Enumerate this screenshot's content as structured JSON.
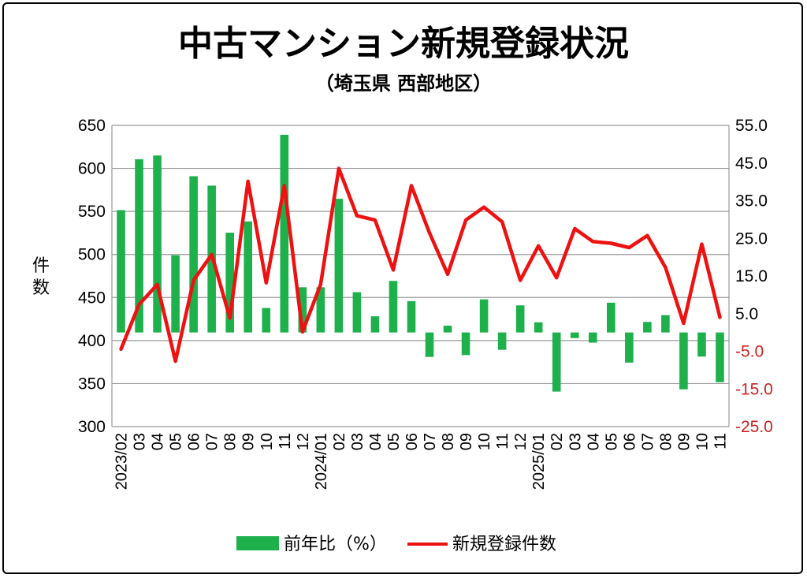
{
  "chart_data": {
    "type": "bar+line",
    "title": "中古マンション新規登録状況",
    "subtitle": "（埼玉県 西部地区）",
    "ylabel_left": "件数",
    "left_axis": {
      "min": 300,
      "max": 650,
      "ticks": [
        "300",
        "350",
        "400",
        "450",
        "500",
        "550",
        "600",
        "650"
      ]
    },
    "right_axis": {
      "min": -25,
      "max": 55,
      "ticks": [
        "-25.0",
        "-15.0",
        "-5.0",
        "5.0",
        "15.0",
        "25.0",
        "35.0",
        "45.0",
        "55.0"
      ],
      "negative_color": "#cc2222"
    },
    "categories": [
      "2023/02",
      "03",
      "04",
      "05",
      "06",
      "07",
      "08",
      "09",
      "10",
      "11",
      "12",
      "2024/01",
      "02",
      "03",
      "04",
      "05",
      "06",
      "07",
      "08",
      "09",
      "10",
      "11",
      "12",
      "2025/01",
      "02",
      "03",
      "04",
      "05",
      "06",
      "07",
      "08",
      "09",
      "10",
      "11"
    ],
    "series": [
      {
        "name": "前年比(%)",
        "type": "bar",
        "axis": "right",
        "color": "#1db04b",
        "values": [
          32.5,
          46.0,
          47.0,
          20.5,
          41.5,
          39.0,
          26.5,
          29.5,
          6.5,
          52.5,
          12.0,
          12.0,
          35.5,
          10.7,
          4.3,
          13.7,
          8.3,
          -6.5,
          1.8,
          -6.0,
          8.8,
          -4.6,
          7.2,
          2.7,
          -15.7,
          -1.5,
          -2.7,
          7.9,
          -8.0,
          2.8,
          4.6,
          -15.1,
          -6.4,
          -13.2
        ]
      },
      {
        "name": "新規登録件数",
        "type": "line",
        "axis": "left",
        "color": "#ee1111",
        "values": [
          390,
          442,
          465,
          376,
          470,
          500,
          426,
          585,
          467,
          580,
          410,
          465,
          600,
          545,
          540,
          482,
          580,
          525,
          477,
          540,
          555,
          538,
          470,
          510,
          473,
          530,
          515,
          513,
          508,
          522,
          485,
          420,
          512,
          427
        ]
      }
    ],
    "legend": {
      "placement": "bottom-center",
      "bar_label": "前年比（%）",
      "line_label": "新規登録件数"
    }
  }
}
